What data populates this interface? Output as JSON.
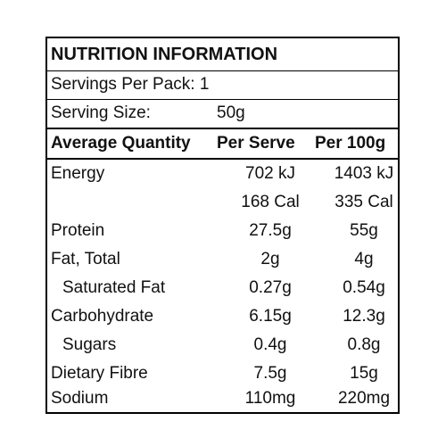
{
  "label": {
    "title": "NUTRITION INFORMATION",
    "servings_per_pack": "Servings Per Pack: 1",
    "serving_size_label": "Serving Size:",
    "serving_size_value": "50g",
    "header": {
      "quantity": "Average Quantity",
      "per_serve": "Per Serve",
      "per_100g": "Per 100g"
    },
    "rows": [
      {
        "name": "Energy",
        "per_serve": "702 kJ",
        "per_100g": "1403 kJ"
      },
      {
        "name": "",
        "per_serve": "168 Cal",
        "per_100g": "335 Cal"
      },
      {
        "name": "Protein",
        "per_serve": "27.5g",
        "per_100g": "55g"
      },
      {
        "name": "Fat, Total",
        "per_serve": "2g",
        "per_100g": "4g"
      },
      {
        "name": "Saturated Fat",
        "per_serve": "0.27g",
        "per_100g": "0.54g"
      },
      {
        "name": "Carbohydrate",
        "per_serve": "6.15g",
        "per_100g": "12.3g"
      },
      {
        "name": "Sugars",
        "per_serve": "0.4g",
        "per_100g": "0.8g"
      },
      {
        "name": "Dietary Fibre",
        "per_serve": "7.5g",
        "per_100g": "15g"
      },
      {
        "name": "Sodium",
        "per_serve": "110mg",
        "per_100g": "220mg"
      }
    ]
  }
}
